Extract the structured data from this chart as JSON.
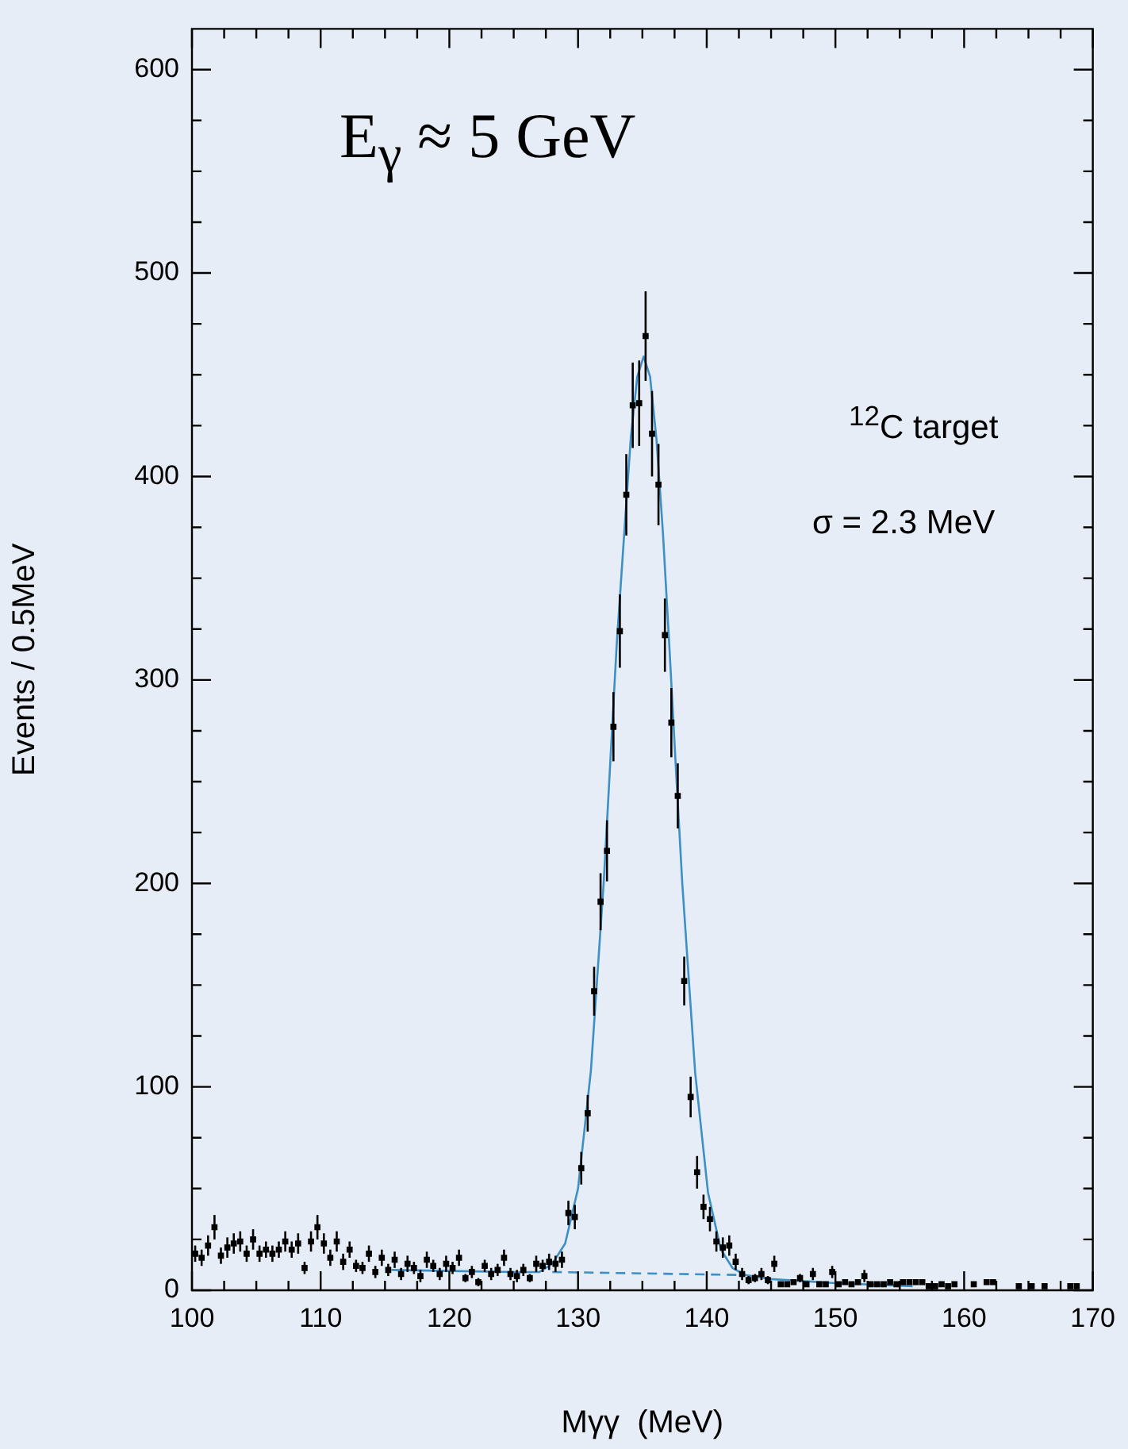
{
  "chart_data": {
    "type": "scatter",
    "xlabel": "Mγγ  (MeV)",
    "ylabel": "Events / 0.5MeV",
    "annotations": [
      "E$_{γ}$ ≈ 5 GeV",
      "$^{12}$C target",
      "σ = 2.3 MeV"
    ],
    "xlim": [
      100,
      170
    ],
    "xticks": [
      100,
      {
        "value": 102.5,
        "label": null
      },
      {
        "value": 105,
        "label": null
      },
      {
        "value": 107.5,
        "label": null
      },
      110,
      {
        "value": 112.5,
        "label": null
      },
      {
        "value": 115,
        "label": null
      },
      {
        "value": 117.5,
        "label": null
      },
      120,
      {
        "value": 122.5,
        "label": null
      },
      {
        "value": 125,
        "label": null
      },
      {
        "value": 127.5,
        "label": null
      },
      130,
      {
        "value": 132.5,
        "label": null
      },
      {
        "value": 135,
        "label": null
      },
      {
        "value": 137.5,
        "label": null
      },
      140,
      {
        "value": 142.5,
        "label": null
      },
      {
        "value": 145,
        "label": null
      },
      {
        "value": 147.5,
        "label": null
      },
      150,
      {
        "value": 152.5,
        "label": null
      },
      {
        "value": 155,
        "label": null
      },
      {
        "value": 157.5,
        "label": null
      },
      160,
      {
        "value": 162.5,
        "label": null
      },
      {
        "value": 165,
        "label": null
      },
      {
        "value": 167.5,
        "label": null
      },
      170
    ],
    "ylim": [
      0,
      620
    ],
    "yticks": [
      0,
      {
        "value": 25,
        "label": null
      },
      {
        "value": 50,
        "label": null
      },
      {
        "value": 75,
        "label": null
      },
      100,
      {
        "value": 125,
        "label": null
      },
      {
        "value": 150,
        "label": null
      },
      {
        "value": 175,
        "label": null
      },
      200,
      {
        "value": 225,
        "label": null
      },
      {
        "value": 250,
        "label": null
      },
      {
        "value": 275,
        "label": null
      },
      300,
      {
        "value": 325,
        "label": null
      },
      {
        "value": 350,
        "label": null
      },
      {
        "value": 375,
        "label": null
      },
      400,
      {
        "value": 425,
        "label": null
      },
      {
        "value": 450,
        "label": null
      },
      {
        "value": 475,
        "label": null
      },
      500,
      {
        "value": 525,
        "label": null
      },
      {
        "value": 550,
        "label": null
      },
      {
        "value": 575,
        "label": null
      },
      600
    ],
    "grid": false,
    "legend": false,
    "series": [
      {
        "type": "scatter",
        "color": "#000000",
        "marker": "square",
        "x": [
          100.25,
          100.75,
          101.25,
          101.75,
          102.25,
          102.75,
          103.25,
          103.75,
          104.25,
          104.75,
          105.25,
          105.75,
          106.25,
          106.75,
          107.25,
          107.75,
          108.25,
          108.75,
          109.25,
          109.75,
          110.25,
          110.75,
          111.25,
          111.75,
          112.25,
          112.75,
          113.25,
          113.75,
          114.25,
          114.75,
          115.25,
          115.75,
          116.25,
          116.75,
          117.25,
          117.75,
          118.25,
          118.75,
          119.25,
          119.75,
          120.25,
          120.75,
          121.25,
          121.75,
          122.25,
          122.75,
          123.25,
          123.75,
          124.25,
          124.75,
          125.25,
          125.75,
          126.25,
          126.75,
          127.25,
          127.75,
          128.25,
          128.75,
          129.25,
          129.75,
          130.25,
          130.75,
          131.25,
          131.75,
          132.25,
          132.75,
          133.25,
          133.75,
          134.25,
          134.75,
          135.25,
          135.75,
          136.25,
          136.75,
          137.25,
          137.75,
          138.25,
          138.75,
          139.25,
          139.75,
          140.25,
          140.75,
          141.25,
          141.75,
          142.25,
          142.75,
          143.25,
          143.75,
          144.25,
          144.75,
          145.25,
          145.75,
          146.25,
          146.75,
          147.25,
          147.75,
          148.25,
          148.75,
          149.25,
          149.75,
          150.25,
          150.75,
          151.25,
          151.75,
          152.25,
          152.75,
          153.25,
          153.75,
          154.25,
          154.75,
          155.25,
          155.75,
          156.25,
          156.75,
          157.25,
          157.75,
          158.25,
          158.75,
          159.25,
          160.75,
          161.75,
          162.25,
          164.25,
          165.25,
          166.25,
          168.25,
          168.75
        ],
        "values": [
          18,
          16,
          22,
          31,
          17,
          21,
          23,
          24,
          18,
          25,
          18,
          20,
          18,
          20,
          24,
          20,
          23,
          11,
          24,
          31,
          23,
          16,
          24,
          14,
          20,
          12,
          11,
          18,
          9,
          16,
          10,
          15,
          8,
          13,
          11,
          7,
          15,
          12,
          8,
          13,
          11,
          16,
          6,
          9,
          4,
          12,
          8,
          10,
          16,
          8,
          7,
          10,
          6,
          13,
          12,
          14,
          13,
          15,
          38,
          36,
          60,
          87,
          147,
          191,
          216,
          277,
          324,
          391,
          435,
          436,
          469,
          421,
          396,
          322,
          279,
          243,
          152,
          95,
          58,
          41,
          35,
          24,
          21,
          22,
          14,
          8,
          5,
          6,
          8,
          5,
          13,
          3,
          3,
          4,
          6,
          3,
          8,
          3,
          3,
          9,
          3,
          4,
          3,
          4,
          7,
          3,
          3,
          3,
          4,
          3,
          4,
          4,
          4,
          4,
          2,
          2,
          3,
          2,
          3,
          3,
          4,
          4,
          2,
          2,
          2,
          2,
          2
        ],
        "errors": [
          4,
          4,
          5,
          6,
          4,
          5,
          5,
          5,
          4,
          5,
          4,
          4,
          4,
          4,
          5,
          4,
          5,
          3,
          5,
          6,
          5,
          4,
          5,
          4,
          4,
          3,
          3,
          4,
          3,
          4,
          3,
          4,
          3,
          4,
          3,
          3,
          4,
          3,
          3,
          4,
          3,
          4,
          2,
          3,
          2,
          3,
          3,
          3,
          4,
          3,
          3,
          3,
          2,
          4,
          3,
          4,
          4,
          4,
          6,
          6,
          8,
          9,
          12,
          14,
          15,
          17,
          18,
          20,
          21,
          21,
          22,
          21,
          20,
          18,
          17,
          16,
          12,
          10,
          8,
          6,
          6,
          5,
          5,
          5,
          4,
          3,
          2,
          2,
          3,
          2,
          4,
          null,
          null,
          null,
          2,
          null,
          3,
          null,
          null,
          3,
          null,
          null,
          null,
          null,
          3,
          null,
          null,
          null,
          null,
          null,
          null,
          null,
          null,
          null,
          null,
          null,
          null,
          null,
          null,
          null,
          null,
          null,
          null,
          null,
          null,
          null,
          null
        ]
      },
      {
        "type": "line",
        "color": "#3d8fc4",
        "marker": "none",
        "line_style": "solid",
        "x": [
          115.5,
          120,
          125,
          127,
          128,
          129,
          130,
          131,
          132,
          133,
          133.6,
          134.1,
          134.6,
          135.1,
          135.6,
          136.1,
          136.6,
          137.1,
          137.6,
          138.1,
          139.1,
          140.1,
          141.1,
          142,
          143,
          145,
          150,
          156
        ],
        "values": [
          10,
          9.5,
          9,
          9,
          13,
          23,
          50,
          108,
          201,
          317,
          373,
          419,
          449,
          459,
          449,
          418,
          372,
          316,
          257,
          200,
          107,
          48,
          20,
          11,
          7.5,
          5.5,
          3.5,
          2
        ]
      },
      {
        "type": "line",
        "color": "#3d8fc4",
        "marker": "none",
        "line_style": "dashed",
        "x": [
          128,
          143
        ],
        "values": [
          9,
          7.5
        ]
      }
    ]
  }
}
